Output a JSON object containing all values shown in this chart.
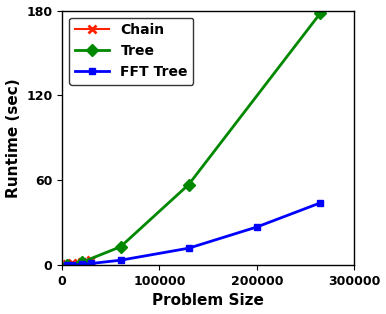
{
  "chain": {
    "x": [
      5000,
      10000,
      20000,
      30000
    ],
    "y": [
      0.8,
      1.5,
      2.5,
      3.8
    ],
    "color": "#ff2200",
    "marker": "x",
    "label": "Chain",
    "linewidth": 1.5,
    "markersize": 6
  },
  "tree": {
    "x": [
      5000,
      20000,
      60000,
      130000,
      265000
    ],
    "y": [
      0.2,
      2.0,
      13.0,
      57.0,
      178.0
    ],
    "color": "#008800",
    "marker": "D",
    "label": "Tree",
    "linewidth": 2.0,
    "markersize": 6
  },
  "fft_tree": {
    "x": [
      5000,
      10000,
      20000,
      30000,
      60000,
      130000,
      200000,
      265000
    ],
    "y": [
      0.05,
      0.15,
      0.5,
      1.2,
      3.5,
      12.0,
      27.0,
      44.0
    ],
    "color": "#0000ff",
    "marker": "s",
    "label": "FFT Tree",
    "linewidth": 2.0,
    "markersize": 5
  },
  "xlabel": "Problem Size",
  "ylabel": "Runtime (sec)",
  "xlim": [
    0,
    300000
  ],
  "ylim": [
    0,
    180
  ],
  "yticks": [
    0,
    60,
    120,
    180
  ],
  "xticks": [
    0,
    100000,
    200000,
    300000
  ],
  "xtick_labels": [
    "0",
    "100000",
    "200000",
    "300000"
  ],
  "legend_loc": "upper left",
  "figsize": [
    3.86,
    3.14
  ],
  "dpi": 100
}
